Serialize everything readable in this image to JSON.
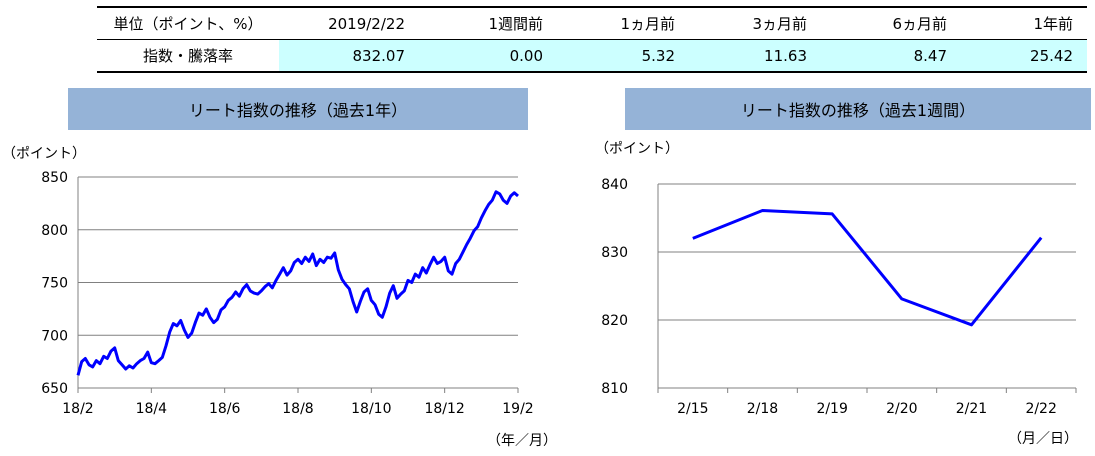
{
  "summary": {
    "columns": [
      "単位（ポイント、%）",
      "2019/2/22",
      "1週間前",
      "1ヵ月前",
      "3ヵ月前",
      "6ヵ月前",
      "1年前"
    ],
    "row_label": "指数・騰落率",
    "values": [
      "832.07",
      "0.00",
      "5.32",
      "11.63",
      "8.47",
      "25.42"
    ]
  },
  "chart_data": [
    {
      "type": "line",
      "title": "リート指数の推移（過去1年）",
      "ylabel": "（ポイント）",
      "xlabel": "（年／月）",
      "ylim": [
        650,
        850
      ],
      "yticks": [
        650,
        700,
        750,
        800,
        850
      ],
      "xticks": [
        "18/2",
        "18/4",
        "18/6",
        "18/8",
        "18/10",
        "18/12",
        "19/2"
      ],
      "grid": true,
      "color": "#0000ff",
      "x": [
        0,
        3,
        6,
        9,
        12,
        15,
        18,
        21,
        24,
        27,
        30,
        33,
        36,
        39,
        42,
        45,
        48,
        51,
        54,
        57,
        60,
        63,
        66,
        69,
        72,
        75,
        78,
        81,
        84,
        87,
        90,
        93,
        96,
        99,
        102,
        105,
        108,
        111,
        114,
        117,
        120,
        123,
        126,
        129,
        132,
        135,
        138,
        141,
        144,
        147,
        150,
        153,
        156,
        159,
        162,
        165,
        168,
        171,
        174,
        177,
        180,
        183,
        186,
        189,
        192,
        195,
        198,
        201,
        204,
        207,
        210,
        213,
        216,
        219,
        222,
        225,
        228,
        231,
        234,
        237,
        240,
        243,
        246,
        249,
        252,
        255,
        258,
        261,
        264,
        267,
        270,
        273,
        276,
        279,
        282,
        285,
        288,
        291,
        294,
        297,
        300,
        303,
        306,
        309,
        312,
        315,
        318,
        321,
        324,
        327,
        330,
        333,
        336,
        339,
        342,
        345,
        348,
        351,
        354,
        357,
        360
      ],
      "values": [
        662,
        675,
        678,
        672,
        670,
        676,
        673,
        680,
        678,
        685,
        688,
        676,
        672,
        668,
        671,
        669,
        673,
        676,
        678,
        684,
        674,
        673,
        676,
        679,
        690,
        703,
        711,
        709,
        714,
        705,
        698,
        702,
        712,
        721,
        719,
        725,
        717,
        712,
        715,
        724,
        727,
        733,
        736,
        741,
        737,
        744,
        748,
        742,
        740,
        739,
        742,
        746,
        749,
        745,
        752,
        758,
        764,
        757,
        761,
        769,
        772,
        768,
        774,
        770,
        777,
        766,
        772,
        769,
        774,
        773,
        778,
        762,
        753,
        748,
        744,
        732,
        722,
        732,
        741,
        744,
        733,
        729,
        720,
        717,
        727,
        740,
        747,
        735,
        739,
        742,
        752,
        750,
        758,
        755,
        764,
        759,
        767,
        774,
        768,
        770,
        774,
        761,
        758,
        768,
        772,
        779,
        786,
        792,
        799,
        803,
        811,
        818,
        824,
        828,
        836,
        834,
        828,
        825,
        832,
        835,
        832
      ]
    },
    {
      "type": "line",
      "title": "リート指数の推移（過去1週間）",
      "ylabel": "（ポイント）",
      "xlabel": "（月／日）",
      "ylim": [
        810,
        840
      ],
      "yticks": [
        810,
        820,
        830,
        840
      ],
      "categories": [
        "2/15",
        "2/18",
        "2/19",
        "2/20",
        "2/21",
        "2/22"
      ],
      "values": [
        832.0,
        836.1,
        835.6,
        823.1,
        819.3,
        832.1
      ],
      "grid": true,
      "color": "#0000ff"
    }
  ]
}
